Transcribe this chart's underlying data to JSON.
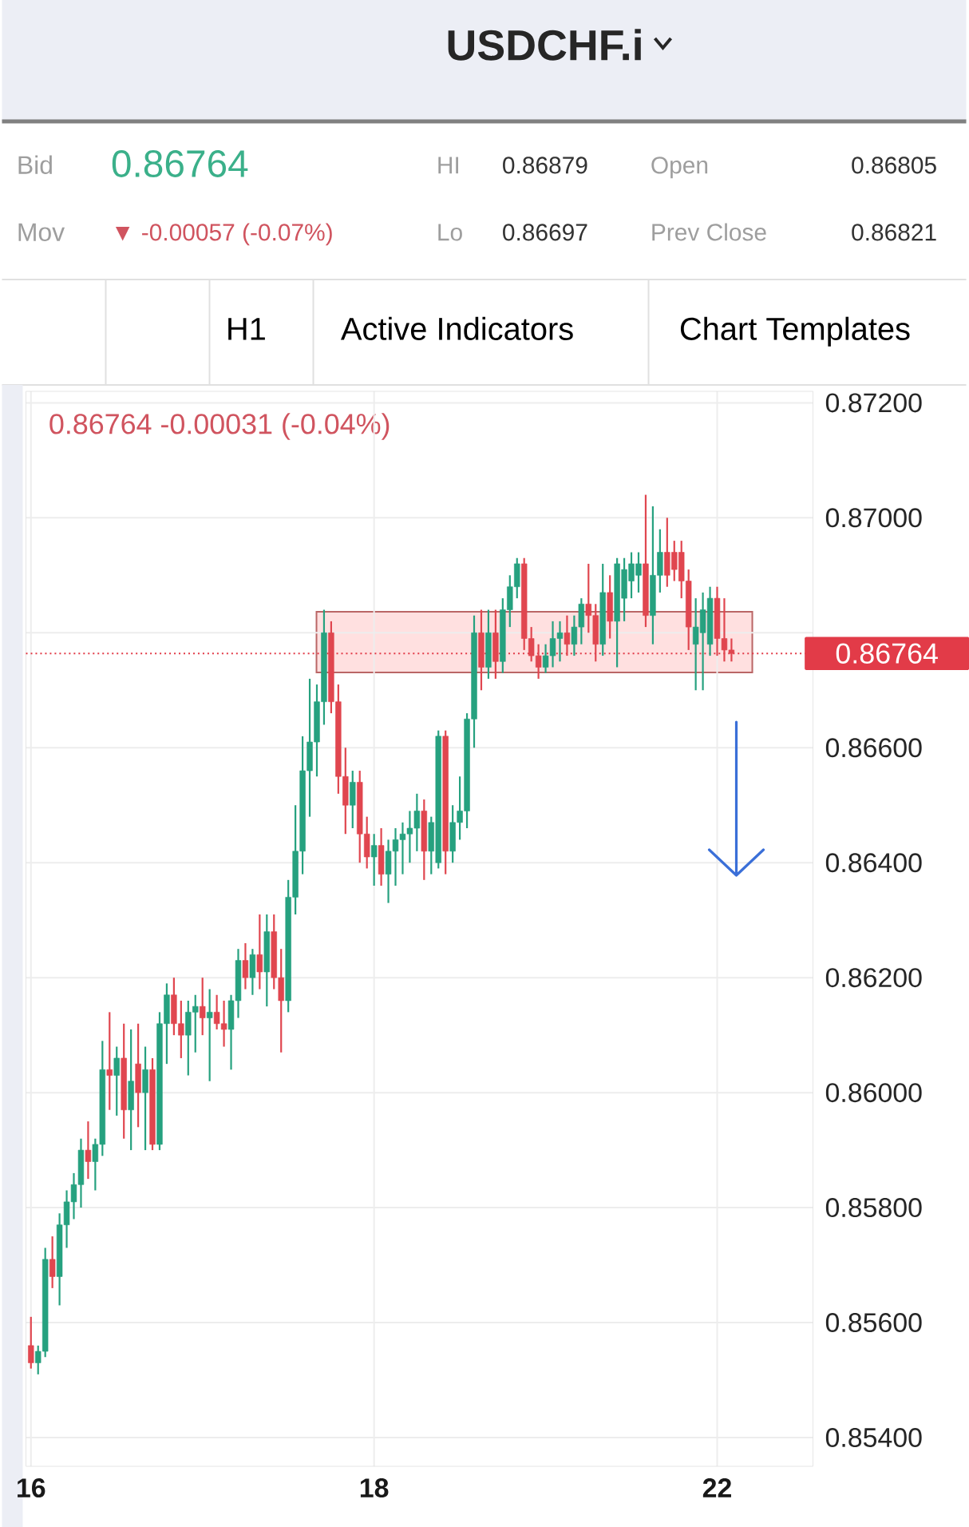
{
  "chart_data": {
    "type": "candlestick",
    "title": "USDCHF.i",
    "subtitle": "0.86764  -0.00031 (-0.04%)",
    "annotations": [
      "Bid",
      "0.86764",
      "Mov",
      "▼ -0.00057 (-0.07%)",
      "HI",
      "0.86879",
      "Lo",
      "0.86697",
      "Open",
      "0.86805",
      "Prev Close",
      "0.86821",
      "H1",
      "Active Indicators",
      "Chart Templates"
    ],
    "categories": [
      "16",
      null,
      null,
      null,
      null,
      null,
      null,
      null,
      null,
      null,
      null,
      null,
      null,
      null,
      null,
      null,
      null,
      null,
      null,
      null,
      null,
      null,
      null,
      null,
      null,
      null,
      null,
      null,
      null,
      null,
      null,
      null,
      null,
      null,
      null,
      null,
      null,
      null,
      null,
      null,
      null,
      null,
      null,
      null,
      null,
      null,
      null,
      null,
      "18",
      null,
      null,
      null,
      null,
      null,
      null,
      null,
      null,
      null,
      null,
      null,
      null,
      null,
      null,
      null,
      null,
      null,
      null,
      null,
      null,
      null,
      null,
      null,
      null,
      null,
      null,
      null,
      null,
      null,
      null,
      null,
      null,
      null,
      null,
      null,
      null,
      null,
      null,
      null,
      null,
      null,
      null,
      null,
      null,
      null,
      null,
      null,
      "22",
      null,
      null
    ],
    "ohlc": [
      [
        0.8556,
        0.8561,
        0.8552,
        0.8553
      ],
      [
        0.8553,
        0.8556,
        0.8551,
        0.8555
      ],
      [
        0.8555,
        0.8573,
        0.8554,
        0.8571
      ],
      [
        0.8571,
        0.8575,
        0.8566,
        0.8568
      ],
      [
        0.8568,
        0.8579,
        0.8563,
        0.8577
      ],
      [
        0.8577,
        0.8583,
        0.8573,
        0.8581
      ],
      [
        0.8581,
        0.8586,
        0.8578,
        0.8584
      ],
      [
        0.8584,
        0.8592,
        0.858,
        0.859
      ],
      [
        0.859,
        0.8595,
        0.8585,
        0.8588
      ],
      [
        0.8588,
        0.8592,
        0.8583,
        0.8591
      ],
      [
        0.8591,
        0.8609,
        0.8589,
        0.8604
      ],
      [
        0.8604,
        0.8614,
        0.8597,
        0.8603
      ],
      [
        0.8603,
        0.8608,
        0.8596,
        0.8606
      ],
      [
        0.8606,
        0.8612,
        0.8592,
        0.8597
      ],
      [
        0.8597,
        0.8611,
        0.859,
        0.8602
      ],
      [
        0.8605,
        0.8612,
        0.8594,
        0.86
      ],
      [
        0.86,
        0.8608,
        0.859,
        0.8604
      ],
      [
        0.8604,
        0.8606,
        0.859,
        0.8591
      ],
      [
        0.8591,
        0.8614,
        0.859,
        0.8612
      ],
      [
        0.8612,
        0.8619,
        0.8605,
        0.8617
      ],
      [
        0.8617,
        0.862,
        0.861,
        0.8612
      ],
      [
        0.8612,
        0.8616,
        0.8606,
        0.861
      ],
      [
        0.861,
        0.8616,
        0.8603,
        0.8614
      ],
      [
        0.8614,
        0.8617,
        0.8607,
        0.8615
      ],
      [
        0.8615,
        0.862,
        0.861,
        0.8613
      ],
      [
        0.8613,
        0.8618,
        0.8602,
        0.8614
      ],
      [
        0.8614,
        0.8617,
        0.8611,
        0.8612
      ],
      [
        0.8612,
        0.8616,
        0.8608,
        0.8611
      ],
      [
        0.8611,
        0.8617,
        0.8604,
        0.8616
      ],
      [
        0.8616,
        0.8625,
        0.8613,
        0.8623
      ],
      [
        0.8623,
        0.8626,
        0.8618,
        0.862
      ],
      [
        0.862,
        0.8625,
        0.8617,
        0.8624
      ],
      [
        0.8624,
        0.8631,
        0.8618,
        0.8621
      ],
      [
        0.8621,
        0.8631,
        0.8615,
        0.8628
      ],
      [
        0.8628,
        0.8631,
        0.8618,
        0.862
      ],
      [
        0.862,
        0.8625,
        0.8607,
        0.8616
      ],
      [
        0.8616,
        0.8637,
        0.8614,
        0.8634
      ],
      [
        0.8634,
        0.865,
        0.8631,
        0.8642
      ],
      [
        0.8642,
        0.8662,
        0.8638,
        0.8656
      ],
      [
        0.8656,
        0.8672,
        0.8648,
        0.8661
      ],
      [
        0.8661,
        0.8671,
        0.8655,
        0.8668
      ],
      [
        0.8668,
        0.8684,
        0.8664,
        0.868
      ],
      [
        0.868,
        0.8682,
        0.8666,
        0.8668
      ],
      [
        0.8668,
        0.8671,
        0.8652,
        0.8655
      ],
      [
        0.8655,
        0.866,
        0.8645,
        0.865
      ],
      [
        0.865,
        0.8656,
        0.8646,
        0.8654
      ],
      [
        0.8654,
        0.8656,
        0.864,
        0.8645
      ],
      [
        0.8645,
        0.8648,
        0.8639,
        0.8641
      ],
      [
        0.8641,
        0.8645,
        0.8636,
        0.8643
      ],
      [
        0.8643,
        0.8646,
        0.8636,
        0.8638
      ],
      [
        0.8638,
        0.8644,
        0.8633,
        0.8642
      ],
      [
        0.8642,
        0.8646,
        0.8636,
        0.8644
      ],
      [
        0.8644,
        0.8647,
        0.8638,
        0.8645
      ],
      [
        0.8645,
        0.8649,
        0.864,
        0.8646
      ],
      [
        0.8646,
        0.8652,
        0.8642,
        0.8649
      ],
      [
        0.8649,
        0.8651,
        0.8637,
        0.8642
      ],
      [
        0.8642,
        0.8648,
        0.8638,
        0.8647
      ],
      [
        0.864,
        0.8663,
        0.8639,
        0.8662
      ],
      [
        0.8662,
        0.8663,
        0.8638,
        0.8642
      ],
      [
        0.8642,
        0.865,
        0.864,
        0.8647
      ],
      [
        0.8647,
        0.8655,
        0.8644,
        0.8649
      ],
      [
        0.8649,
        0.8666,
        0.8646,
        0.8665
      ],
      [
        0.8665,
        0.8683,
        0.866,
        0.868
      ],
      [
        0.868,
        0.8684,
        0.867,
        0.8674
      ],
      [
        0.8674,
        0.8684,
        0.8672,
        0.868
      ],
      [
        0.868,
        0.8684,
        0.8672,
        0.8675
      ],
      [
        0.8675,
        0.8686,
        0.8673,
        0.8684
      ],
      [
        0.8684,
        0.869,
        0.8681,
        0.8688
      ],
      [
        0.8688,
        0.8693,
        0.8686,
        0.8692
      ],
      [
        0.8692,
        0.8693,
        0.8677,
        0.8679
      ],
      [
        0.8679,
        0.8681,
        0.8675,
        0.8676
      ],
      [
        0.8676,
        0.8678,
        0.8672,
        0.8674
      ],
      [
        0.8674,
        0.8678,
        0.8673,
        0.8676
      ],
      [
        0.8676,
        0.8682,
        0.8674,
        0.8679
      ],
      [
        0.8679,
        0.8682,
        0.8675,
        0.868
      ],
      [
        0.868,
        0.8683,
        0.8676,
        0.8678
      ],
      [
        0.8678,
        0.8683,
        0.8676,
        0.8681
      ],
      [
        0.8681,
        0.8686,
        0.8678,
        0.8685
      ],
      [
        0.8685,
        0.8692,
        0.868,
        0.8683
      ],
      [
        0.8683,
        0.8685,
        0.8675,
        0.8678
      ],
      [
        0.8678,
        0.8692,
        0.8676,
        0.8687
      ],
      [
        0.8687,
        0.869,
        0.8679,
        0.8682
      ],
      [
        0.8682,
        0.8693,
        0.8674,
        0.8692
      ],
      [
        0.8686,
        0.8693,
        0.8682,
        0.8691
      ],
      [
        0.8689,
        0.8694,
        0.8686,
        0.8692
      ],
      [
        0.869,
        0.8694,
        0.8687,
        0.8692
      ],
      [
        0.8692,
        0.8704,
        0.8681,
        0.8683
      ],
      [
        0.8683,
        0.8702,
        0.8678,
        0.869
      ],
      [
        0.869,
        0.8698,
        0.8687,
        0.8694
      ],
      [
        0.8694,
        0.87,
        0.8688,
        0.869
      ],
      [
        0.8694,
        0.8696,
        0.8689,
        0.8691
      ],
      [
        0.8694,
        0.8696,
        0.8686,
        0.8689
      ],
      [
        0.8689,
        0.8691,
        0.8677,
        0.8681
      ],
      [
        0.8678,
        0.8686,
        0.867,
        0.8681
      ],
      [
        0.868,
        0.8687,
        0.867,
        0.8684
      ],
      [
        0.8678,
        0.8688,
        0.8676,
        0.8686
      ],
      [
        0.8686,
        0.8688,
        0.8676,
        0.8679
      ],
      [
        0.8679,
        0.8686,
        0.8675,
        0.8677
      ],
      [
        0.8677,
        0.8679,
        0.8675,
        0.86764
      ]
    ],
    "ylim": [
      0.8535,
      0.8722
    ],
    "yticks": [
      {
        "value": 0.854,
        "label": "0.85400"
      },
      {
        "value": 0.856,
        "label": "0.85600"
      },
      {
        "value": 0.858,
        "label": "0.85800"
      },
      {
        "value": 0.86,
        "label": "0.86000"
      },
      {
        "value": 0.862,
        "label": "0.86200"
      },
      {
        "value": 0.864,
        "label": "0.86400"
      },
      {
        "value": 0.866,
        "label": "0.86600"
      },
      {
        "value": 0.868,
        "label": null
      },
      {
        "value": 0.87,
        "label": "0.87000"
      },
      {
        "value": 0.872,
        "label": "0.87200"
      }
    ],
    "ref_lines": [
      {
        "axis": "y",
        "value": 0.86764,
        "label": "0.86764",
        "color": "#e23b48",
        "line_style": "dotted"
      }
    ],
    "grid": true
  }
}
